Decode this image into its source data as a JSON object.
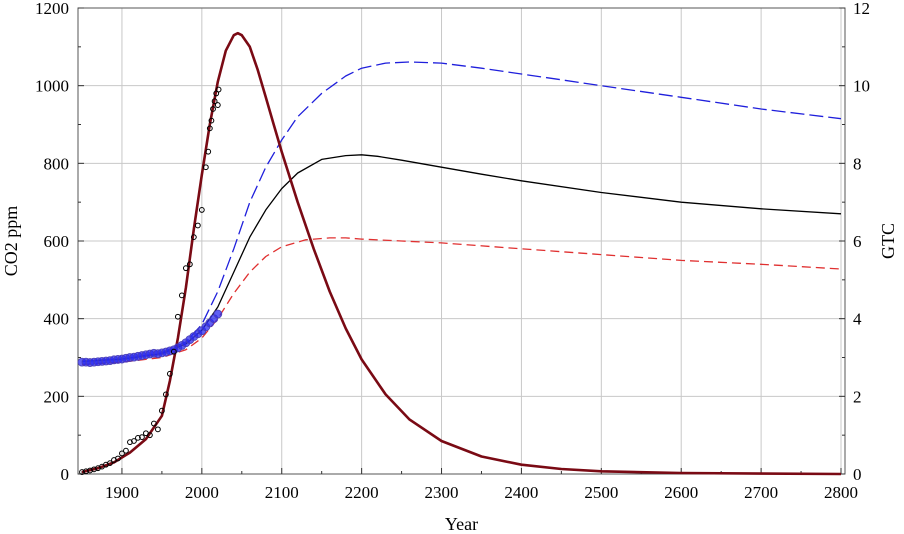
{
  "chart_data": {
    "type": "line",
    "xlabel": "Year",
    "ylabel_left": "CO2 ppm",
    "ylabel_right": "GTC",
    "xlim": [
      1845,
      2805
    ],
    "ylim_left": [
      0,
      1200
    ],
    "ylim_right": [
      0,
      12
    ],
    "xticks": [
      1900,
      2000,
      2100,
      2200,
      2300,
      2400,
      2500,
      2600,
      2700,
      2800
    ],
    "xtick_labels": [
      "1900",
      "2000",
      "2100",
      "2200",
      "2300",
      "2400",
      "2500",
      "2600",
      "2700",
      "2800"
    ],
    "yticks_left": [
      0,
      200,
      400,
      600,
      800,
      1000,
      1200
    ],
    "ytick_labels_left": [
      "0",
      "200",
      "400",
      "600",
      "800",
      "1000",
      "1200"
    ],
    "yticks_right": [
      0,
      2,
      4,
      6,
      8,
      10,
      12
    ],
    "ytick_labels_right": [
      "0",
      "2",
      "4",
      "6",
      "8",
      "10",
      "12"
    ],
    "grid": true,
    "series": [
      {
        "axis": "left",
        "style": "solid",
        "color": "#000000",
        "x": [
          1850,
          1900,
          1950,
          1980,
          2000,
          2020,
          2040,
          2060,
          2080,
          2100,
          2120,
          2150,
          2180,
          2200,
          2220,
          2250,
          2300,
          2350,
          2400,
          2500,
          2600,
          2700,
          2800
        ],
        "y": [
          290,
          296,
          310,
          335,
          370,
          430,
          520,
          610,
          680,
          735,
          775,
          810,
          820,
          822,
          818,
          808,
          790,
          772,
          755,
          725,
          700,
          683,
          670
        ]
      },
      {
        "axis": "left",
        "style": "dashed",
        "color": "#1f1fdc",
        "x": [
          1850,
          1900,
          1950,
          1980,
          2000,
          2020,
          2040,
          2060,
          2080,
          2100,
          2120,
          2150,
          2180,
          2200,
          2230,
          2260,
          2300,
          2350,
          2400,
          2450,
          2500,
          2600,
          2700,
          2800
        ],
        "y": [
          290,
          296,
          312,
          340,
          385,
          470,
          580,
          700,
          790,
          860,
          920,
          980,
          1025,
          1045,
          1058,
          1061,
          1058,
          1045,
          1030,
          1015,
          1000,
          970,
          940,
          915
        ]
      },
      {
        "axis": "left",
        "style": "dashed",
        "color": "#e03030",
        "x": [
          1850,
          1900,
          1950,
          1980,
          2000,
          2020,
          2040,
          2060,
          2080,
          2100,
          2130,
          2160,
          2180,
          2200,
          2250,
          2300,
          2400,
          2500,
          2600,
          2700,
          2800
        ],
        "y": [
          282,
          288,
          300,
          320,
          350,
          400,
          465,
          520,
          560,
          585,
          603,
          608,
          608,
          605,
          600,
          595,
          580,
          565,
          550,
          540,
          528
        ]
      },
      {
        "axis": "right",
        "style": "solid",
        "color": "#7a0a14",
        "x": [
          1850,
          1870,
          1890,
          1910,
          1930,
          1950,
          1960,
          1970,
          1980,
          1990,
          2000,
          2010,
          2020,
          2030,
          2040,
          2045,
          2050,
          2060,
          2070,
          2080,
          2090,
          2100,
          2120,
          2140,
          2160,
          2180,
          2200,
          2230,
          2260,
          2300,
          2350,
          2400,
          2450,
          2500,
          2600,
          2700,
          2800
        ],
        "y": [
          0.05,
          0.15,
          0.3,
          0.55,
          0.9,
          1.5,
          2.4,
          3.5,
          4.8,
          6.3,
          7.7,
          9.0,
          10.1,
          10.9,
          11.3,
          11.35,
          11.3,
          11.0,
          10.4,
          9.7,
          9.0,
          8.3,
          7.0,
          5.8,
          4.7,
          3.75,
          2.95,
          2.05,
          1.4,
          0.85,
          0.45,
          0.24,
          0.13,
          0.07,
          0.025,
          0.01,
          0.0
        ]
      }
    ],
    "observations": [
      {
        "axis": "left",
        "marker": "filled-circle",
        "color": "#2a2af0",
        "x": [
          1850,
          1855,
          1860,
          1865,
          1870,
          1875,
          1880,
          1885,
          1890,
          1895,
          1900,
          1905,
          1910,
          1915,
          1920,
          1925,
          1930,
          1935,
          1940,
          1945,
          1950,
          1955,
          1960,
          1965,
          1970,
          1975,
          1980,
          1985,
          1990,
          1995,
          2000,
          2005,
          2010,
          2015,
          2020
        ],
        "y": [
          288,
          288,
          287,
          288,
          289,
          290,
          291,
          292,
          294,
          295,
          296,
          298,
          300,
          301,
          303,
          305,
          307,
          309,
          311,
          310,
          312,
          314,
          317,
          320,
          325,
          331,
          338,
          346,
          354,
          361,
          369,
          379,
          389,
          400,
          412
        ]
      },
      {
        "axis": "right",
        "marker": "open-circle",
        "color": "#000000",
        "x": [
          1850,
          1855,
          1860,
          1865,
          1870,
          1875,
          1880,
          1885,
          1890,
          1895,
          1900,
          1905,
          1910,
          1915,
          1920,
          1925,
          1930,
          1935,
          1940,
          1945,
          1950,
          1955,
          1960,
          1965,
          1970,
          1975,
          1980,
          1985,
          1990,
          1995,
          2000,
          2005,
          2008,
          2010,
          2012,
          2014,
          2016,
          2018,
          2020,
          2021
        ],
        "y": [
          0.05,
          0.07,
          0.09,
          0.12,
          0.15,
          0.19,
          0.24,
          0.28,
          0.36,
          0.4,
          0.53,
          0.6,
          0.82,
          0.85,
          0.93,
          0.95,
          1.05,
          1.0,
          1.3,
          1.15,
          1.63,
          2.05,
          2.58,
          3.15,
          4.05,
          4.6,
          5.3,
          5.4,
          6.1,
          6.4,
          6.8,
          7.9,
          8.3,
          8.9,
          9.1,
          9.4,
          9.6,
          9.8,
          9.5,
          9.9
        ]
      }
    ]
  }
}
